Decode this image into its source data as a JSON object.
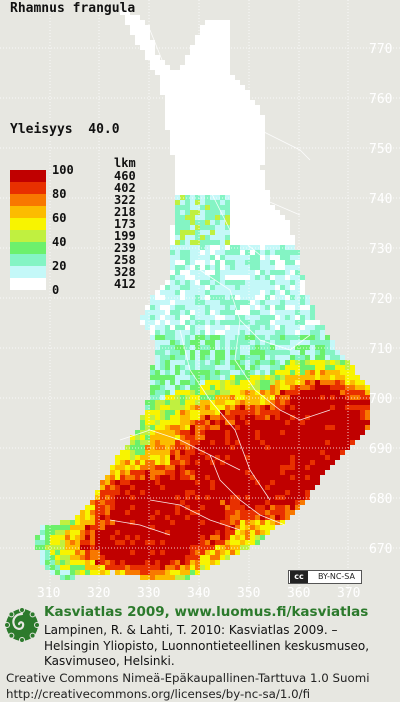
{
  "map": {
    "title": "Rhamnus frangula",
    "frequency_label": "Yleisyys",
    "frequency_value": "40.0",
    "y_ticks": [
      "770",
      "760",
      "750",
      "740",
      "730",
      "720",
      "710",
      "700",
      "690",
      "680",
      "670"
    ],
    "x_ticks": [
      "310",
      "320",
      "330",
      "340",
      "350",
      "360",
      "370"
    ]
  },
  "legend": {
    "count_header": "lkm",
    "percent_labels": [
      "100",
      "80",
      "60",
      "40",
      "20",
      "0"
    ],
    "classes": [
      {
        "color": "#c00000",
        "count": "460"
      },
      {
        "color": "#e83000",
        "count": "402"
      },
      {
        "color": "#f87800",
        "count": "322"
      },
      {
        "color": "#fcbc00",
        "count": "218"
      },
      {
        "color": "#f8f400",
        "count": "173"
      },
      {
        "color": "#c0f040",
        "count": "199"
      },
      {
        "color": "#6cf06c",
        "count": "239"
      },
      {
        "color": "#84f4c4",
        "count": "258"
      },
      {
        "color": "#c4f8f8",
        "count": "328"
      },
      {
        "color": "#ffffff",
        "count": "412"
      }
    ]
  },
  "license_badge": {
    "cc": "cc",
    "text": "BY-NC-SA"
  },
  "footer": {
    "title": "Kasviatlas 2009, www.luomus.fi/kasviatlas",
    "reference_line1": "Lampinen, R. & Lahti, T. 2010: Kasviatlas 2009. –",
    "reference_line2": "Helsingin Yliopisto, Luonnontieteellinen keskusmuseo,",
    "reference_line3": "Kasvimuseo, Helsinki.",
    "license_line1": "Creative Commons Nimeä-Epäkaupallinen-Tarttuva 1.0 Suomi",
    "license_line2": "http://creativecommons.org/licenses/by-nc-sa/1.0/fi"
  }
}
